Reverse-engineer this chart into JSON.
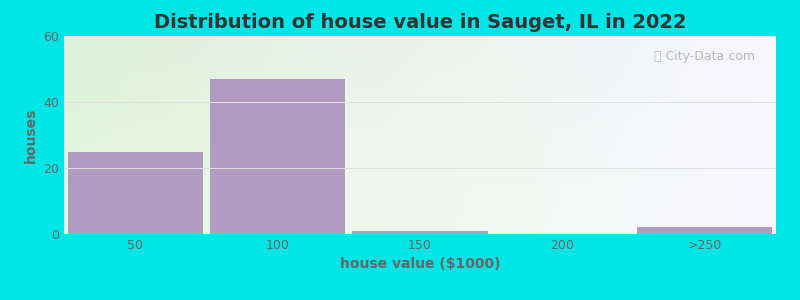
{
  "title": "Distribution of house value in Sauget, IL in 2022",
  "xlabel": "house value ($1000)",
  "ylabel": "houses",
  "bar_labels": [
    "50",
    "100",
    "150",
    "200",
    ">250"
  ],
  "bar_values": [
    25,
    47,
    1,
    0,
    2
  ],
  "bar_color": "#b09cc0",
  "bar_width": 0.95,
  "ylim": [
    0,
    60
  ],
  "yticks": [
    0,
    20,
    40,
    60
  ],
  "background_outer": "#00e5e5",
  "bg_top_left": "#ddf0d8",
  "bg_top_right": "#f0eef8",
  "bg_bottom_left": "#e8f8e0",
  "bg_bottom_right": "#f8f6fc",
  "title_fontsize": 14,
  "label_fontsize": 10,
  "tick_fontsize": 9,
  "title_color": "#333333",
  "label_color": "#666666",
  "grid_color": "#e0e0e0",
  "watermark_text": "City-Data.com"
}
